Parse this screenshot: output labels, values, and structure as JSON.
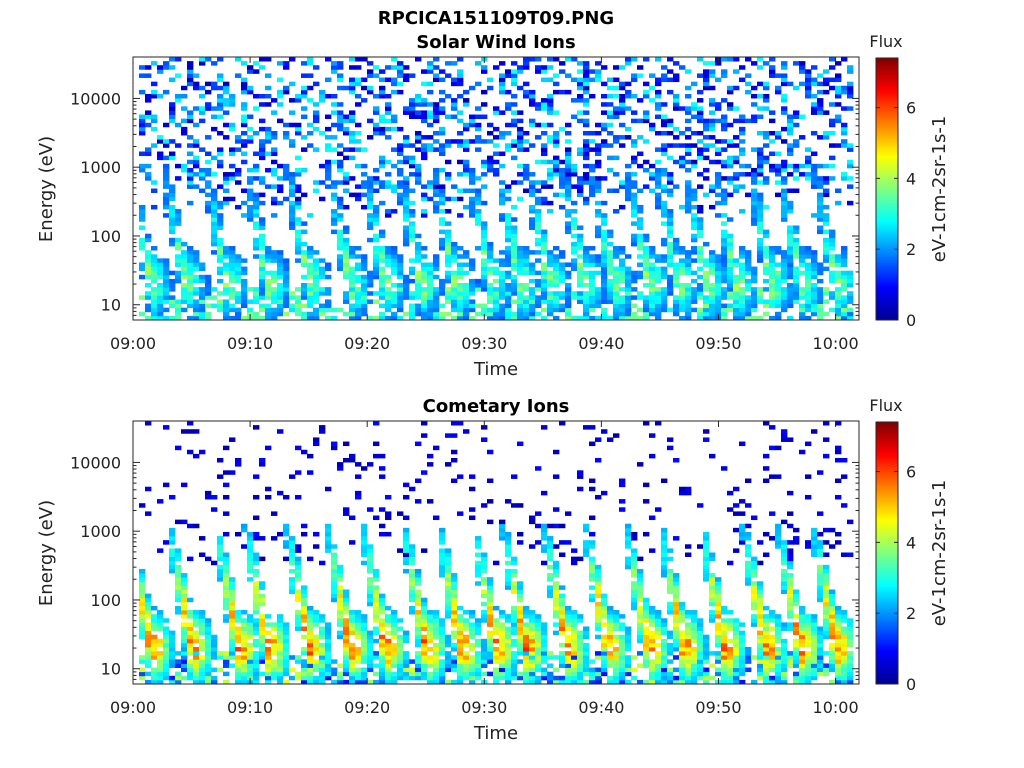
{
  "figure_title": "RPCICA151109T09.PNG",
  "chart_data": [
    {
      "type": "heatmap",
      "title": "Solar Wind Ions",
      "xlabel": "Time",
      "ylabel": "Energy (eV)",
      "x_ticks": [
        "09:00",
        "09:10",
        "09:20",
        "09:30",
        "09:40",
        "09:50",
        "10:00"
      ],
      "x_range_minutes": [
        0,
        62
      ],
      "y_ticks": [
        "10",
        "100",
        "1000",
        "10000"
      ],
      "y_range": [
        6,
        40000
      ],
      "y_scale": "log",
      "colorbar": {
        "title": "Flux",
        "label": "eV-1cm-2sr-1s-1",
        "ticks": [
          "0",
          "2",
          "4",
          "6"
        ],
        "range": [
          0,
          7.4
        ]
      },
      "peak_flux": 4.2,
      "burst_minutes": [
        1.5,
        4.5,
        8,
        11.5,
        15,
        18.5,
        21.5,
        24.5,
        27.5,
        30.5,
        33,
        35.5,
        38.5,
        41,
        44,
        46.5,
        49,
        51.5,
        54.5,
        57,
        60
      ]
    },
    {
      "type": "heatmap",
      "title": "Cometary Ions",
      "xlabel": "Time",
      "ylabel": "Energy (eV)",
      "x_ticks": [
        "09:00",
        "09:10",
        "09:20",
        "09:30",
        "09:40",
        "09:50",
        "10:00"
      ],
      "x_range_minutes": [
        0,
        62
      ],
      "y_ticks": [
        "10",
        "100",
        "1000",
        "10000"
      ],
      "y_range": [
        6,
        40000
      ],
      "y_scale": "log",
      "colorbar": {
        "title": "Flux",
        "label": "eV-1cm-2sr-1s-1",
        "ticks": [
          "0",
          "2",
          "4",
          "6"
        ],
        "range": [
          0,
          7.4
        ]
      },
      "peak_flux": 6.3,
      "burst_minutes": [
        1.5,
        5,
        9,
        11.5,
        15,
        18.5,
        21.5,
        25,
        28,
        31,
        33.5,
        37,
        40.5,
        44,
        47,
        50.5,
        54,
        57,
        60
      ]
    }
  ],
  "colors": {
    "colormap": [
      "#00008f",
      "#0000ff",
      "#007fff",
      "#00ffff",
      "#7fff7f",
      "#ffff00",
      "#ff7f00",
      "#ff0000",
      "#7f0000"
    ]
  }
}
